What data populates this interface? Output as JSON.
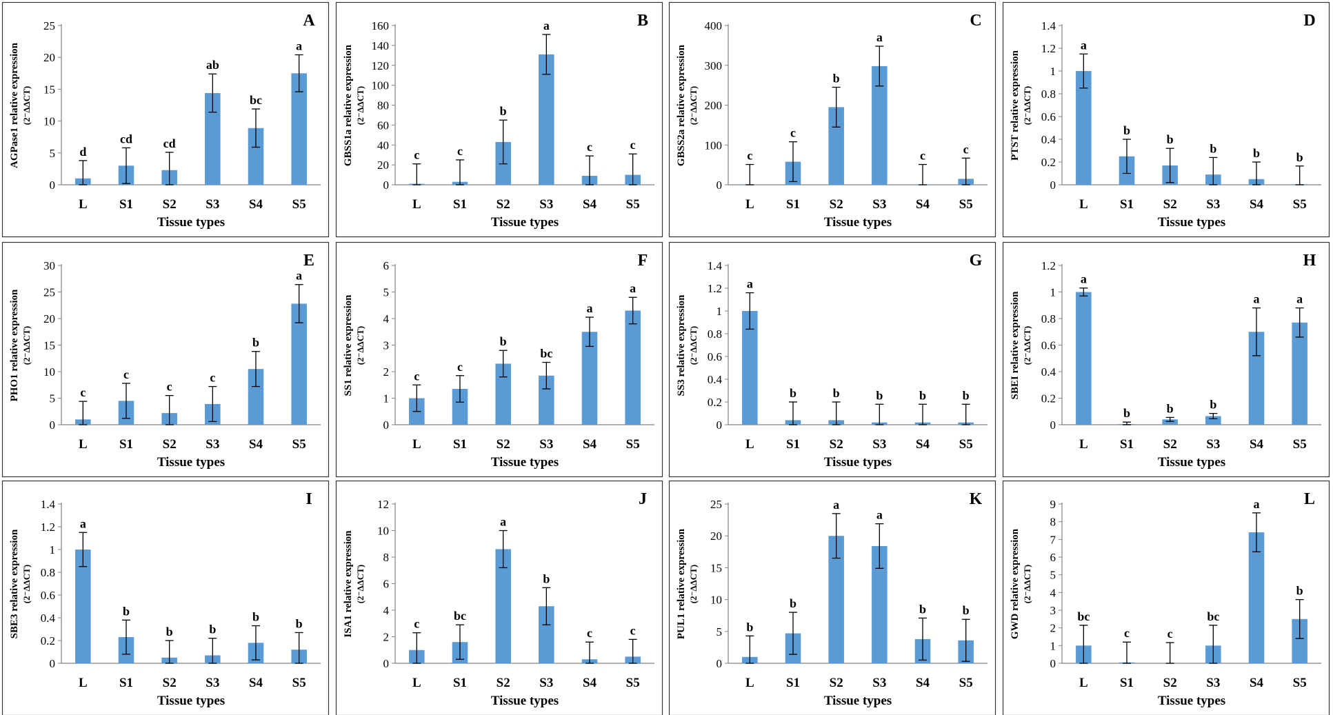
{
  "figure": {
    "bar_color": "#5b9bd5",
    "axis_color": "#808080",
    "panel_border_color": "#333333",
    "text_color": "#000000"
  },
  "chart_data": [
    {
      "panel": "A",
      "type": "bar",
      "ylabel": "AGPase1 relative expression",
      "superscript": "(2⁻ΔΔCT)",
      "xlabel": "Tissue types",
      "categories": [
        "L",
        "S1",
        "S2",
        "S3",
        "S4",
        "S5"
      ],
      "values": [
        1,
        3,
        2.3,
        14.4,
        8.9,
        17.5
      ],
      "errors": [
        2.8,
        2.8,
        2.8,
        3,
        3,
        2.9
      ],
      "letters": [
        "d",
        "cd",
        "cd",
        "ab",
        "bc",
        "a"
      ],
      "ylim": [
        0,
        25
      ],
      "yticks": [
        "0",
        "5",
        "10",
        "15",
        "20",
        "25"
      ]
    },
    {
      "panel": "B",
      "type": "bar",
      "ylabel": "GBSS1a relative expression",
      "superscript": "(2⁻ΔΔCT)",
      "xlabel": "Tissue types",
      "categories": [
        "L",
        "S1",
        "S2",
        "S3",
        "S4",
        "S5"
      ],
      "values": [
        1,
        3,
        43,
        131,
        9,
        10
      ],
      "errors": [
        20,
        22,
        22,
        20,
        20,
        21
      ],
      "letters": [
        "c",
        "c",
        "b",
        "a",
        "c",
        "c"
      ],
      "ylim": [
        0,
        160
      ],
      "yticks": [
        "0",
        "20",
        "40",
        "60",
        "80",
        "100",
        "120",
        "140",
        "160"
      ]
    },
    {
      "panel": "C",
      "type": "bar",
      "ylabel": "GBSS2a relative expression",
      "superscript": "(2⁻ΔΔCT)",
      "xlabel": "Tissue types",
      "categories": [
        "L",
        "S1",
        "S2",
        "S3",
        "S4",
        "S5"
      ],
      "values": [
        1,
        58,
        195,
        298,
        1,
        15
      ],
      "errors": [
        50,
        50,
        50,
        50,
        50,
        52
      ],
      "letters": [
        "c",
        "c",
        "b",
        "a",
        "c",
        "c"
      ],
      "ylim": [
        0,
        400
      ],
      "yticks": [
        "0",
        "100",
        "200",
        "300",
        "400"
      ]
    },
    {
      "panel": "D",
      "type": "bar",
      "ylabel": "PTST relative expression",
      "superscript": "(2⁻ΔΔCT)",
      "xlabel": "Tissue types",
      "categories": [
        "L",
        "S1",
        "S2",
        "S3",
        "S4",
        "S5"
      ],
      "values": [
        1,
        0.25,
        0.17,
        0.09,
        0.05,
        0.005
      ],
      "errors": [
        0.15,
        0.15,
        0.15,
        0.15,
        0.15,
        0.16
      ],
      "letters": [
        "a",
        "b",
        "b",
        "b",
        "b",
        "b"
      ],
      "ylim": [
        0,
        1.4
      ],
      "yticks": [
        "0",
        "0.2",
        "0.4",
        "0.6",
        "0.8",
        "1",
        "1.2",
        "1.4"
      ]
    },
    {
      "panel": "E",
      "type": "bar",
      "ylabel": "PHO1 relative expression",
      "superscript": "(2⁻ΔΔCT)",
      "xlabel": "Tissue types",
      "categories": [
        "L",
        "S1",
        "S2",
        "S3",
        "S4",
        "S5"
      ],
      "values": [
        1,
        4.5,
        2.2,
        3.9,
        10.5,
        22.8
      ],
      "errors": [
        3.4,
        3.3,
        3.3,
        3.3,
        3.3,
        3.6
      ],
      "letters": [
        "c",
        "c",
        "c",
        "c",
        "b",
        "a"
      ],
      "ylim": [
        0,
        30
      ],
      "yticks": [
        "0",
        "5",
        "10",
        "15",
        "20",
        "25",
        "30"
      ]
    },
    {
      "panel": "F",
      "type": "bar",
      "ylabel": "SS1 relative expression",
      "superscript": "(2⁻ΔΔCT)",
      "xlabel": "Tissue types",
      "categories": [
        "L",
        "S1",
        "S2",
        "S3",
        "S4",
        "S5"
      ],
      "values": [
        1,
        1.35,
        2.3,
        1.85,
        3.5,
        4.3
      ],
      "errors": [
        0.5,
        0.5,
        0.5,
        0.5,
        0.55,
        0.5
      ],
      "letters": [
        "c",
        "c",
        "b",
        "bc",
        "a",
        "a"
      ],
      "ylim": [
        0,
        6
      ],
      "yticks": [
        "0",
        "1",
        "2",
        "3",
        "4",
        "5",
        "6"
      ]
    },
    {
      "panel": "G",
      "type": "bar",
      "ylabel": "SS3 relative expression",
      "superscript": "(2⁻ΔΔCT)",
      "xlabel": "Tissue types",
      "categories": [
        "L",
        "S1",
        "S2",
        "S3",
        "S4",
        "S5"
      ],
      "values": [
        1,
        0.04,
        0.04,
        0.02,
        0.02,
        0.02
      ],
      "errors": [
        0.16,
        0.16,
        0.16,
        0.16,
        0.16,
        0.16
      ],
      "letters": [
        "a",
        "b",
        "b",
        "b",
        "b",
        "b"
      ],
      "ylim": [
        0,
        1.4
      ],
      "yticks": [
        "0",
        "0.2",
        "0.4",
        "0.6",
        "0.8",
        "1",
        "1.2",
        "1.4"
      ]
    },
    {
      "panel": "H",
      "type": "bar",
      "ylabel": "SBEI relative expression",
      "superscript": "(2⁻ΔΔCT)",
      "xlabel": "Tissue types",
      "categories": [
        "L",
        "S1",
        "S2",
        "S3",
        "S4",
        "S5"
      ],
      "values": [
        1,
        0.005,
        0.04,
        0.065,
        0.7,
        0.77
      ],
      "errors": [
        0.03,
        0.015,
        0.015,
        0.02,
        0.18,
        0.11
      ],
      "letters": [
        "a",
        "b",
        "b",
        "b",
        "a",
        "a"
      ],
      "ylim": [
        0,
        1.2
      ],
      "yticks": [
        "0",
        "0.2",
        "0.4",
        "0.6",
        "0.8",
        "1",
        "1.2"
      ]
    },
    {
      "panel": "I",
      "type": "bar",
      "ylabel": "SBE3 relative expression",
      "superscript": "(2⁻ΔΔCT)",
      "xlabel": "Tissue types",
      "categories": [
        "L",
        "S1",
        "S2",
        "S3",
        "S4",
        "S5"
      ],
      "values": [
        1,
        0.23,
        0.05,
        0.07,
        0.18,
        0.12
      ],
      "errors": [
        0.15,
        0.15,
        0.15,
        0.15,
        0.15,
        0.15
      ],
      "letters": [
        "a",
        "b",
        "b",
        "b",
        "b",
        "b"
      ],
      "ylim": [
        0,
        1.4
      ],
      "yticks": [
        "0",
        "0.2",
        "0.4",
        "0.6",
        "0.8",
        "1",
        "1.2",
        "1.4"
      ]
    },
    {
      "panel": "J",
      "type": "bar",
      "ylabel": "ISA1 relative expression",
      "superscript": "(2⁻ΔΔCT)",
      "xlabel": "Tissue types",
      "categories": [
        "L",
        "S1",
        "S2",
        "S3",
        "S4",
        "S5"
      ],
      "values": [
        1,
        1.6,
        8.6,
        4.3,
        0.3,
        0.5
      ],
      "errors": [
        1.3,
        1.3,
        1.4,
        1.4,
        1.3,
        1.3
      ],
      "letters": [
        "c",
        "bc",
        "a",
        "b",
        "c",
        "c"
      ],
      "ylim": [
        0,
        12
      ],
      "yticks": [
        "0",
        "2",
        "4",
        "6",
        "8",
        "10",
        "12"
      ]
    },
    {
      "panel": "K",
      "type": "bar",
      "ylabel": "PUL1 relative expression",
      "superscript": "(2⁻ΔΔCT)",
      "xlabel": "Tissue types",
      "categories": [
        "L",
        "S1",
        "S2",
        "S3",
        "S4",
        "S5"
      ],
      "values": [
        1,
        4.7,
        20,
        18.4,
        3.8,
        3.6
      ],
      "errors": [
        3.3,
        3.3,
        3.5,
        3.5,
        3.3,
        3.3
      ],
      "letters": [
        "b",
        "b",
        "a",
        "a",
        "b",
        "b"
      ],
      "ylim": [
        0,
        25
      ],
      "yticks": [
        "0",
        "5",
        "10",
        "15",
        "20",
        "25"
      ]
    },
    {
      "panel": "L",
      "type": "bar",
      "ylabel": "GWD relative expression",
      "superscript": "(2⁻ΔΔCT)",
      "xlabel": "Tissue types",
      "categories": [
        "L",
        "S1",
        "S2",
        "S3",
        "S4",
        "S5"
      ],
      "values": [
        1,
        0.05,
        0.02,
        1,
        7.4,
        2.5
      ],
      "errors": [
        1.15,
        1.15,
        1.15,
        1.15,
        1.1,
        1.1
      ],
      "letters": [
        "bc",
        "c",
        "c",
        "bc",
        "a",
        "b"
      ],
      "ylim": [
        0,
        9
      ],
      "yticks": [
        "0",
        "1",
        "2",
        "3",
        "4",
        "5",
        "6",
        "7",
        "8",
        "9"
      ]
    }
  ]
}
